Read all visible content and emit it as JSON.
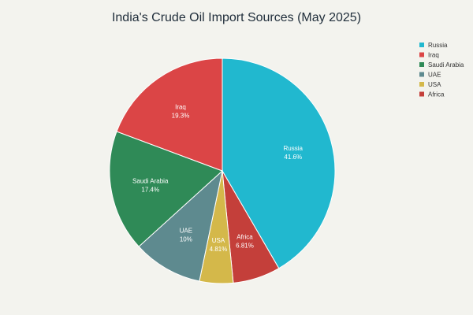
{
  "chart_data": {
    "type": "pie",
    "title": "India's Crude Oil Import Sources (May 2025)",
    "slices": [
      {
        "label": "Russia",
        "value": 41.6,
        "value_text": "41.6%",
        "color": "#21b8cf"
      },
      {
        "label": "Africa",
        "value": 6.81,
        "value_text": "6.81%",
        "color": "#c43f3a"
      },
      {
        "label": "USA",
        "value": 4.81,
        "value_text": "4.81%",
        "color": "#d4b84a"
      },
      {
        "label": "UAE",
        "value": 10,
        "value_text": "10%",
        "color": "#5e8a8f"
      },
      {
        "label": "Saudi Arabia",
        "value": 17.4,
        "value_text": "17.4%",
        "color": "#2f8a57"
      },
      {
        "label": "Iraq",
        "value": 19.3,
        "value_text": "19.3%",
        "color": "#db4546"
      }
    ],
    "legend": {
      "placement": "top-right",
      "entries": [
        {
          "label": "Russia",
          "color": "#21b8cf"
        },
        {
          "label": "Iraq",
          "color": "#db4546"
        },
        {
          "label": "Saudi Arabia",
          "color": "#2f8a57"
        },
        {
          "label": "UAE",
          "color": "#5e8a8f"
        },
        {
          "label": "USA",
          "color": "#d4b84a"
        },
        {
          "label": "Africa",
          "color": "#c43f3a"
        }
      ]
    }
  }
}
